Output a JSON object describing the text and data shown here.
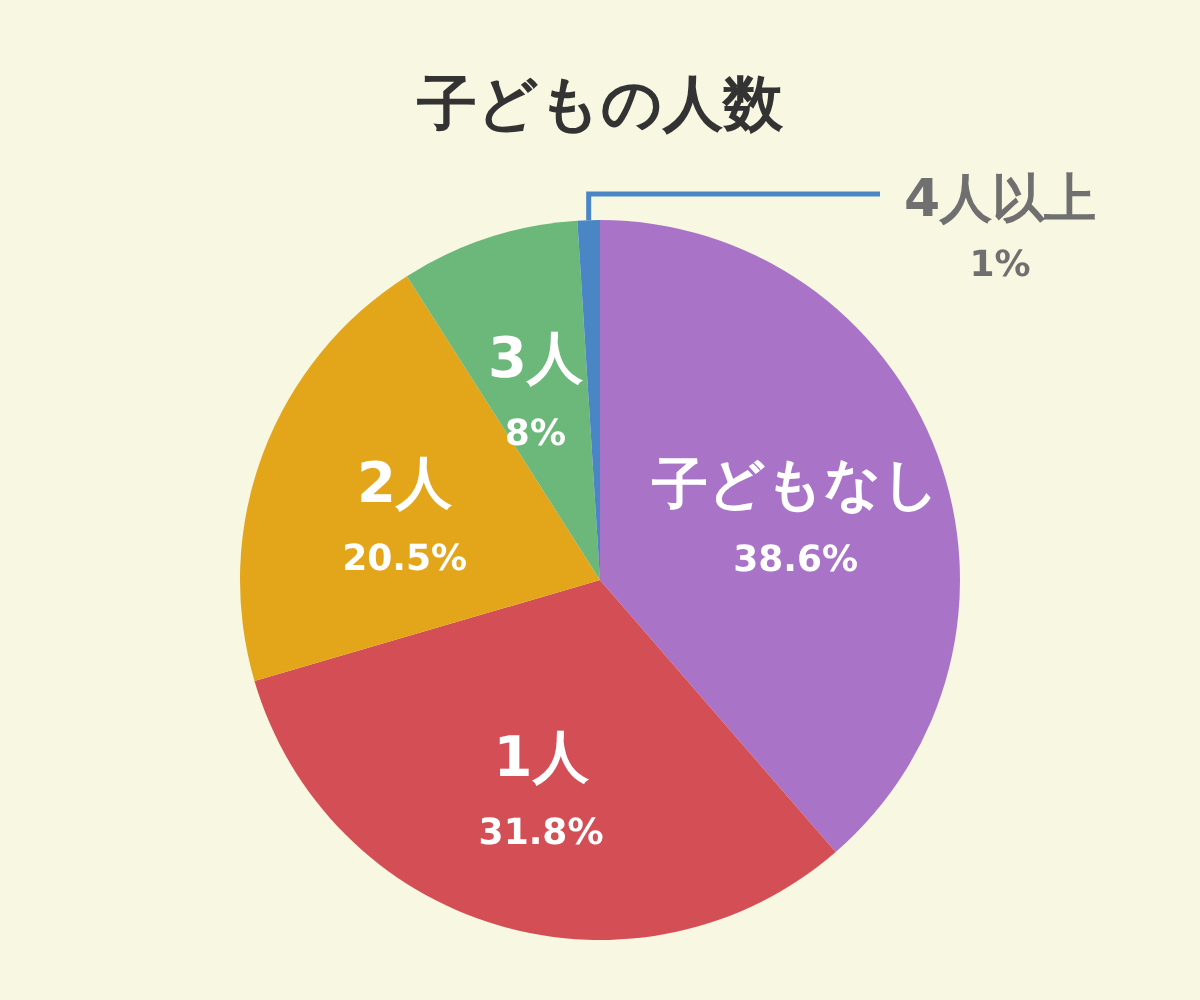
{
  "chart_data": {
    "type": "pie",
    "title": "子どもの人数",
    "categories": [
      "子どもなし",
      "1人",
      "2人",
      "3人",
      "4人以上"
    ],
    "values": [
      38.6,
      31.8,
      20.5,
      8,
      1
    ],
    "value_labels": [
      "38.6%",
      "31.8%",
      "20.5%",
      "8%",
      "1%"
    ],
    "colors": [
      "#a974c8",
      "#d44f55",
      "#e3a51a",
      "#6bb87a",
      "#4a86c6"
    ]
  }
}
